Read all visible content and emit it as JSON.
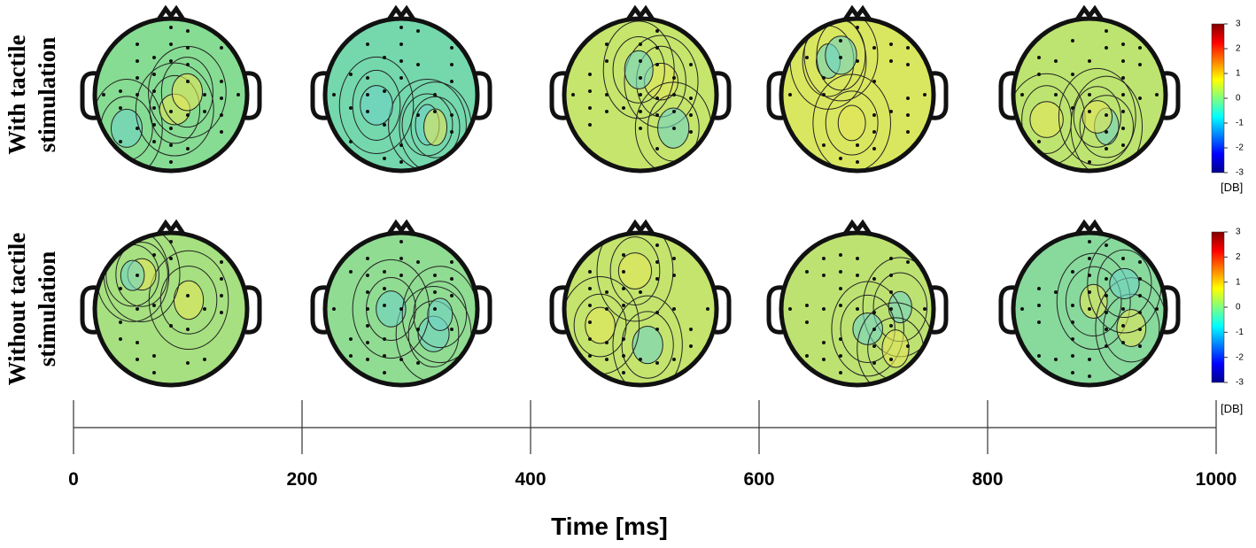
{
  "rows": [
    {
      "label": [
        "With tactile",
        "stimulation"
      ]
    },
    {
      "label": [
        "Without tactile",
        "stimulation"
      ]
    }
  ],
  "colorbar": {
    "lim": [
      -3,
      3
    ],
    "ticks": [
      3,
      2,
      1,
      0,
      -1,
      -2,
      -3
    ],
    "unit": "[DB]"
  },
  "time_axis": {
    "lim": [
      0,
      1000
    ],
    "ticks": [
      0,
      200,
      400,
      600,
      800,
      1000
    ],
    "label": "Time [ms]"
  }
}
